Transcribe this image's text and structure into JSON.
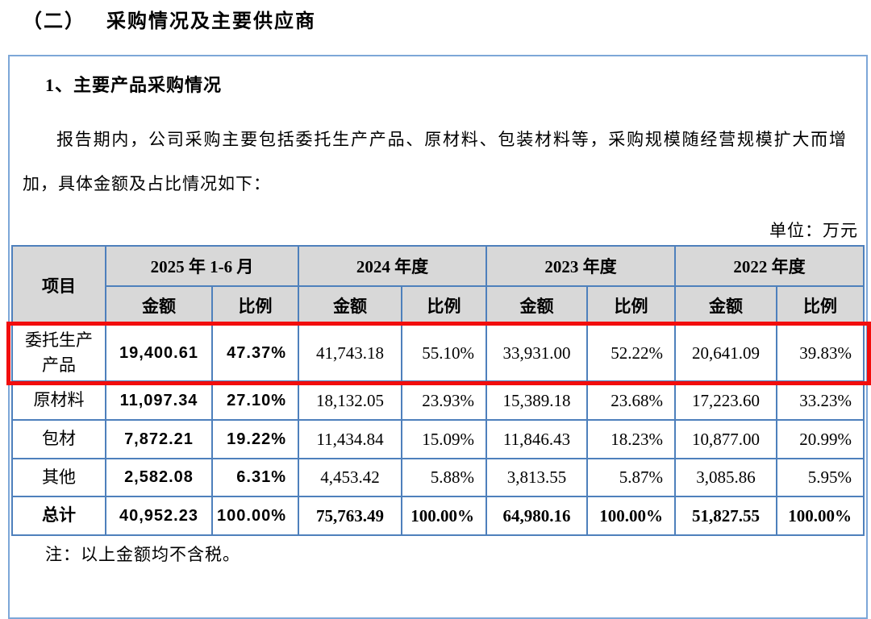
{
  "page": {
    "title_prefix": "（二）",
    "title_text": "采购情况及主要供应商",
    "section_title": "1、主要产品采购情况",
    "intro_paragraph": "报告期内，公司采购主要包括委托生产产品、原材料、包装材料等，采购规模随经营规模扩大而增加，具体金额及占比情况如下：",
    "unit_label": "单位：万元",
    "footnote": "注：以上金额均不含税。"
  },
  "table": {
    "item_header": "项目",
    "period_headers": [
      "2025 年 1-6 月",
      "2024 年度",
      "2023 年度",
      "2022 年度"
    ],
    "amount_header": "金额",
    "ratio_header": "比例",
    "rows": [
      {
        "label": "委托生产产品",
        "highlighted": true,
        "cells": [
          "19,400.61",
          "47.37%",
          "41,743.18",
          "55.10%",
          "33,931.00",
          "52.22%",
          "20,641.09",
          "39.83%"
        ]
      },
      {
        "label": "原材料",
        "cells": [
          "11,097.34",
          "27.10%",
          "18,132.05",
          "23.93%",
          "15,389.18",
          "23.68%",
          "17,223.60",
          "33.23%"
        ]
      },
      {
        "label": "包材",
        "cells": [
          "7,872.21",
          "19.22%",
          "11,434.84",
          "15.09%",
          "11,846.43",
          "18.23%",
          "10,877.00",
          "20.99%"
        ]
      },
      {
        "label": "其他",
        "cells": [
          "2,582.08",
          "6.31%",
          "4,453.42",
          "5.88%",
          "3,813.55",
          "5.87%",
          "3,085.86",
          "5.95%"
        ]
      },
      {
        "label": "总计",
        "total": true,
        "cells": [
          "40,952.23",
          "100.00%",
          "75,763.49",
          "100.00%",
          "64,980.16",
          "100.00%",
          "51,827.55",
          "100.00%"
        ]
      }
    ]
  },
  "colors": {
    "table_border": "#4e80bc",
    "box_border": "#7da7d8",
    "header_bg": "#d8d8d8",
    "highlight_red": "#f20d0d"
  }
}
